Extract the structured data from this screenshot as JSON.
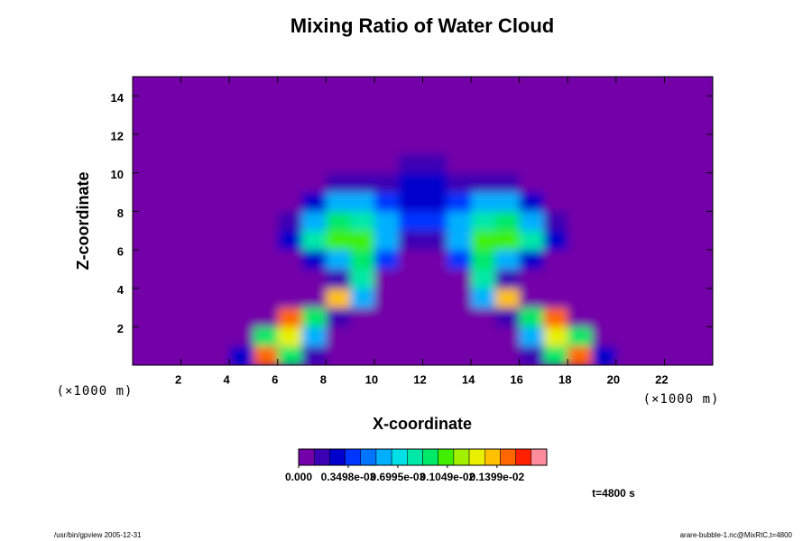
{
  "chart_data": {
    "type": "heatmap",
    "title": "Mixing Ratio of Water Cloud",
    "xlabel": "X-coordinate",
    "ylabel": "Z-coordinate",
    "x_unit": "(×1000 m)",
    "y_unit": "(×1000 m)",
    "annotation": "t=4800 s",
    "footer_left": "/usr/bin/gpview 2005-12-31",
    "footer_right": "arare-bubble-1.nc@MixRtC,t=4800",
    "xlim": [
      0,
      24
    ],
    "ylim": [
      0,
      15
    ],
    "xticks": [
      2,
      4,
      6,
      8,
      10,
      12,
      14,
      16,
      18,
      20,
      22
    ],
    "yticks": [
      2,
      4,
      6,
      8,
      10,
      12,
      14
    ],
    "x": [
      0.5,
      1.5,
      2.5,
      3.5,
      4.5,
      5.5,
      6.5,
      7.5,
      8.5,
      9.5,
      10.5,
      11.5,
      12.5,
      13.5,
      14.5,
      15.5,
      16.5,
      17.5,
      18.5,
      19.5,
      20.5,
      21.5,
      22.5,
      23.5
    ],
    "y": [
      0.5,
      1.5,
      2.5,
      3.5,
      4.5,
      5.5,
      6.5,
      7.5,
      8.5,
      9.5,
      10.5,
      11.5,
      12.5,
      13.5,
      14.5
    ],
    "z": [
      [
        0,
        0,
        0,
        0,
        0.0003,
        0.0015,
        0.0009,
        0.0002,
        0,
        0,
        0,
        0,
        0,
        0,
        0,
        0,
        0.0002,
        0.0009,
        0.0015,
        0.0003,
        0,
        0,
        0,
        0
      ],
      [
        0,
        0,
        0,
        0,
        0,
        0.0009,
        0.0013,
        0.0006,
        0,
        0,
        0,
        0,
        0,
        0,
        0,
        0,
        0.0006,
        0.0013,
        0.0009,
        0,
        0,
        0,
        0,
        0
      ],
      [
        0,
        0,
        0,
        0,
        0,
        0,
        0.0015,
        0.0009,
        0.0002,
        0,
        0,
        0,
        0,
        0,
        0,
        0.0002,
        0.0009,
        0.0015,
        0,
        0,
        0,
        0,
        0,
        0
      ],
      [
        0,
        0,
        0,
        0,
        0,
        0,
        0,
        0,
        0.0014,
        0.0006,
        0,
        0,
        0,
        0,
        0.0006,
        0.0014,
        0,
        0,
        0,
        0,
        0,
        0,
        0,
        0
      ],
      [
        0,
        0,
        0,
        0,
        0,
        0,
        0,
        0,
        0.0002,
        0.0008,
        0,
        0,
        0,
        0,
        0.0008,
        0.0002,
        0,
        0,
        0,
        0,
        0,
        0,
        0,
        0
      ],
      [
        0,
        0,
        0,
        0,
        0,
        0,
        0,
        0.0003,
        0.0006,
        0.0009,
        0.0004,
        0,
        0,
        0.0004,
        0.0009,
        0.0006,
        0.0003,
        0,
        0,
        0,
        0,
        0,
        0,
        0
      ],
      [
        0,
        0,
        0,
        0,
        0,
        0,
        0.0003,
        0.0008,
        0.001,
        0.001,
        0.0006,
        0.0002,
        0.0002,
        0.0006,
        0.001,
        0.001,
        0.0008,
        0.0003,
        0,
        0,
        0,
        0,
        0,
        0
      ],
      [
        0,
        0,
        0,
        0,
        0,
        0,
        0.0002,
        0.0006,
        0.0009,
        0.0008,
        0.0006,
        0.0004,
        0.0004,
        0.0006,
        0.0008,
        0.0009,
        0.0006,
        0.0002,
        0,
        0,
        0,
        0,
        0,
        0
      ],
      [
        0,
        0,
        0,
        0,
        0,
        0,
        0,
        0.0003,
        0.0006,
        0.0006,
        0.0004,
        0.0003,
        0.0003,
        0.0004,
        0.0006,
        0.0006,
        0.0003,
        0,
        0,
        0,
        0,
        0,
        0,
        0
      ],
      [
        0,
        0,
        0,
        0,
        0,
        0,
        0,
        0,
        0.0002,
        0.0002,
        0.0002,
        0.0003,
        0.0003,
        0.0002,
        0.0002,
        0.0002,
        0,
        0,
        0,
        0,
        0,
        0,
        0,
        0
      ],
      [
        0,
        0,
        0,
        0,
        0,
        0,
        0,
        0,
        0,
        0,
        0,
        0.0002,
        0.0002,
        0,
        0,
        0,
        0,
        0,
        0,
        0,
        0,
        0,
        0,
        0
      ],
      [
        0,
        0,
        0,
        0,
        0,
        0,
        0,
        0,
        0,
        0,
        0,
        0,
        0,
        0,
        0,
        0,
        0,
        0,
        0,
        0,
        0,
        0,
        0,
        0
      ],
      [
        0,
        0,
        0,
        0,
        0,
        0,
        0,
        0,
        0,
        0,
        0,
        0,
        0,
        0,
        0,
        0,
        0,
        0,
        0,
        0,
        0,
        0,
        0,
        0
      ],
      [
        0,
        0,
        0,
        0,
        0,
        0,
        0,
        0,
        0,
        0,
        0,
        0,
        0,
        0,
        0,
        0,
        0,
        0,
        0,
        0,
        0,
        0,
        0,
        0
      ],
      [
        0,
        0,
        0,
        0,
        0,
        0,
        0,
        0,
        0,
        0,
        0,
        0,
        0,
        0,
        0,
        0,
        0,
        0,
        0,
        0,
        0,
        0,
        0,
        0
      ]
    ],
    "zlim": [
      0,
      0.00175
    ],
    "zticks": [
      {
        "value": 0,
        "label": "0.000"
      },
      {
        "value": 0.0003498,
        "label": "0.3498e-03"
      },
      {
        "value": 0.0006995,
        "label": "0.6995e-03"
      },
      {
        "value": 0.001049,
        "label": "0.1049e-02"
      },
      {
        "value": 0.001399,
        "label": "0.1399e-02"
      }
    ],
    "colors": [
      "#7300a8",
      "#3c00b4",
      "#0000cc",
      "#0034ff",
      "#0074ff",
      "#00b0ff",
      "#00e0e8",
      "#00e8a8",
      "#00e868",
      "#40f000",
      "#a0f000",
      "#e8f000",
      "#ffc000",
      "#ff6800",
      "#ff2000",
      "#ff8c9c"
    ]
  }
}
